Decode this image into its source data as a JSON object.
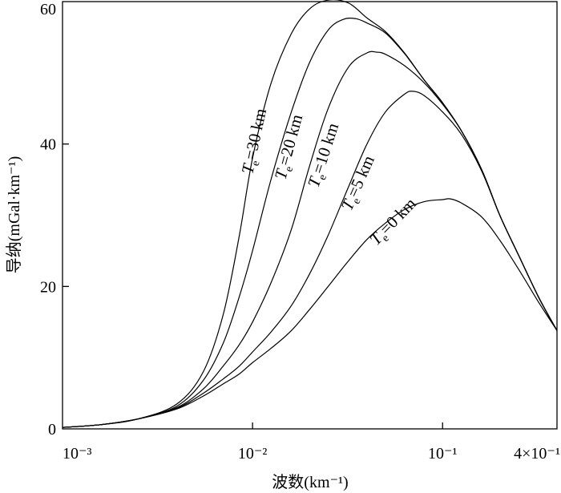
{
  "chart_data": {
    "type": "line",
    "title": "",
    "xlabel": "波数(km⁻¹)",
    "ylabel": "导纳(mGal·km⁻¹)",
    "x_scale": "log",
    "xlim": [
      0.001,
      0.4
    ],
    "ylim": [
      0,
      60
    ],
    "grid": false,
    "x_ticks": [
      {
        "value": 0.001,
        "label": "10⁻³"
      },
      {
        "value": 0.01,
        "label": "10⁻²"
      },
      {
        "value": 0.1,
        "label": "10⁻¹"
      },
      {
        "value": 0.4,
        "label": "4×10⁻¹"
      }
    ],
    "y_ticks": [
      {
        "value": 0,
        "label": "0"
      },
      {
        "value": 20,
        "label": "20"
      },
      {
        "value": 40,
        "label": "40"
      },
      {
        "value": 60,
        "label": "60"
      }
    ],
    "series": [
      {
        "name": "Tₑ=30 km",
        "points": [
          [
            0.001,
            0.2
          ],
          [
            0.0016,
            0.6
          ],
          [
            0.0025,
            1.4
          ],
          [
            0.004,
            3.5
          ],
          [
            0.0055,
            8.0
          ],
          [
            0.007,
            16.0
          ],
          [
            0.0085,
            27.0
          ],
          [
            0.01,
            38.0
          ],
          [
            0.0125,
            48.5
          ],
          [
            0.016,
            55.5
          ],
          [
            0.02,
            59.0
          ],
          [
            0.025,
            60.2
          ],
          [
            0.032,
            59.8
          ],
          [
            0.04,
            57.7
          ],
          [
            0.05,
            55.8
          ],
          [
            0.063,
            52.8
          ],
          [
            0.08,
            49.0
          ],
          [
            0.1,
            45.8
          ],
          [
            0.126,
            41.8
          ],
          [
            0.16,
            36.5
          ],
          [
            0.2,
            30.0
          ],
          [
            0.25,
            24.5
          ],
          [
            0.32,
            18.5
          ],
          [
            0.4,
            13.8
          ]
        ]
      },
      {
        "name": "Tₑ=20 km",
        "points": [
          [
            0.001,
            0.2
          ],
          [
            0.0016,
            0.6
          ],
          [
            0.0025,
            1.4
          ],
          [
            0.004,
            3.2
          ],
          [
            0.0055,
            6.8
          ],
          [
            0.007,
            12.0
          ],
          [
            0.0085,
            18.5
          ],
          [
            0.01,
            25.0
          ],
          [
            0.0125,
            35.0
          ],
          [
            0.016,
            44.5
          ],
          [
            0.02,
            51.5
          ],
          [
            0.025,
            56.0
          ],
          [
            0.03,
            57.5
          ],
          [
            0.035,
            57.6
          ],
          [
            0.04,
            57.0
          ],
          [
            0.05,
            55.6
          ],
          [
            0.063,
            52.7
          ],
          [
            0.08,
            49.0
          ],
          [
            0.1,
            45.8
          ],
          [
            0.126,
            41.8
          ],
          [
            0.16,
            36.5
          ],
          [
            0.2,
            30.0
          ],
          [
            0.25,
            24.5
          ],
          [
            0.32,
            18.5
          ],
          [
            0.4,
            13.8
          ]
        ]
      },
      {
        "name": "Tₑ=10 km",
        "points": [
          [
            0.001,
            0.2
          ],
          [
            0.0016,
            0.6
          ],
          [
            0.0025,
            1.4
          ],
          [
            0.004,
            3.0
          ],
          [
            0.0055,
            5.6
          ],
          [
            0.007,
            8.8
          ],
          [
            0.0085,
            11.8
          ],
          [
            0.01,
            15.0
          ],
          [
            0.0125,
            20.5
          ],
          [
            0.016,
            28.0
          ],
          [
            0.02,
            37.0
          ],
          [
            0.025,
            45.0
          ],
          [
            0.032,
            50.8
          ],
          [
            0.04,
            52.8
          ],
          [
            0.045,
            52.9
          ],
          [
            0.05,
            52.6
          ],
          [
            0.063,
            51.0
          ],
          [
            0.08,
            48.6
          ],
          [
            0.1,
            45.6
          ],
          [
            0.126,
            41.8
          ],
          [
            0.16,
            36.5
          ],
          [
            0.2,
            30.0
          ],
          [
            0.25,
            24.5
          ],
          [
            0.32,
            18.5
          ],
          [
            0.4,
            13.8
          ]
        ]
      },
      {
        "name": "Tₑ=5 km",
        "points": [
          [
            0.001,
            0.2
          ],
          [
            0.0016,
            0.6
          ],
          [
            0.0025,
            1.4
          ],
          [
            0.004,
            2.9
          ],
          [
            0.0055,
            5.0
          ],
          [
            0.007,
            7.0
          ],
          [
            0.0085,
            8.8
          ],
          [
            0.01,
            10.8
          ],
          [
            0.0125,
            13.6
          ],
          [
            0.016,
            17.3
          ],
          [
            0.02,
            21.8
          ],
          [
            0.025,
            27.2
          ],
          [
            0.032,
            34.0
          ],
          [
            0.04,
            40.0
          ],
          [
            0.05,
            44.5
          ],
          [
            0.063,
            47.0
          ],
          [
            0.07,
            47.4
          ],
          [
            0.08,
            46.8
          ],
          [
            0.1,
            44.5
          ],
          [
            0.126,
            41.3
          ],
          [
            0.16,
            36.3
          ],
          [
            0.2,
            30.0
          ],
          [
            0.25,
            24.5
          ],
          [
            0.32,
            18.5
          ],
          [
            0.4,
            13.8
          ]
        ]
      },
      {
        "name": "Tₑ=0 km",
        "points": [
          [
            0.001,
            0.2
          ],
          [
            0.0016,
            0.6
          ],
          [
            0.0025,
            1.4
          ],
          [
            0.004,
            2.8
          ],
          [
            0.0055,
            4.6
          ],
          [
            0.007,
            6.3
          ],
          [
            0.0085,
            7.7
          ],
          [
            0.01,
            9.3
          ],
          [
            0.0125,
            11.3
          ],
          [
            0.016,
            13.8
          ],
          [
            0.02,
            16.8
          ],
          [
            0.025,
            20.0
          ],
          [
            0.032,
            23.6
          ],
          [
            0.04,
            26.6
          ],
          [
            0.05,
            28.9
          ],
          [
            0.063,
            30.8
          ],
          [
            0.08,
            31.9
          ],
          [
            0.1,
            32.2
          ],
          [
            0.11,
            32.3
          ],
          [
            0.126,
            31.7
          ],
          [
            0.16,
            29.8
          ],
          [
            0.2,
            26.5
          ],
          [
            0.25,
            22.5
          ],
          [
            0.32,
            17.8
          ],
          [
            0.4,
            13.8
          ]
        ]
      }
    ],
    "curve_labels": [
      {
        "italic": "T",
        "sub": "e",
        "rest": "=30 km",
        "series": 0
      },
      {
        "italic": "T",
        "sub": "e",
        "rest": "=20 km",
        "series": 1
      },
      {
        "italic": "T",
        "sub": "e",
        "rest": "=10 km",
        "series": 2
      },
      {
        "italic": "T",
        "sub": "e",
        "rest": "=5 km",
        "series": 3
      },
      {
        "italic": "T",
        "sub": "e",
        "rest": "=0 km",
        "series": 4
      }
    ],
    "line_color": "#000000",
    "background": "#ffffff"
  }
}
